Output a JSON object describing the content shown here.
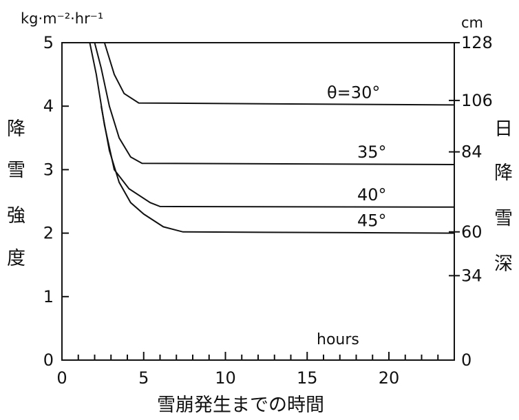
{
  "chart_data": {
    "type": "line",
    "xlabel": "雪崩発生までの時間",
    "ylabel_left": [
      "降",
      "雪",
      "強",
      "度"
    ],
    "ylabel_right": [
      "日",
      "降",
      "雪",
      "深"
    ],
    "left_unit": "kg·m⁻²·hr⁻¹",
    "right_unit": "cm",
    "hours_label": "hours",
    "xlim": [
      0,
      24
    ],
    "ylim": [
      0,
      5
    ],
    "x_ticks": [
      "0",
      "5",
      "10",
      "15",
      "20"
    ],
    "x_tick_values": [
      0,
      5,
      10,
      15,
      20
    ],
    "y_ticks": [
      "0",
      "1",
      "2",
      "3",
      "4",
      "5"
    ],
    "y_tick_values": [
      0,
      1,
      2,
      3,
      4,
      5
    ],
    "right_ticks": [
      "0",
      "34",
      "60",
      "84",
      "106",
      "128"
    ],
    "right_tick_values": [
      0,
      1.33,
      2.02,
      3.28,
      4.09,
      5
    ],
    "series": [
      {
        "name": "θ=30°",
        "points": [
          [
            2.2,
            5.0
          ],
          [
            2.6,
            5.0
          ],
          [
            3.2,
            4.5
          ],
          [
            3.8,
            4.2
          ],
          [
            4.7,
            4.05
          ],
          [
            24,
            4.02
          ]
        ]
      },
      {
        "name": "35°",
        "points": [
          [
            2.0,
            5.0
          ],
          [
            2.4,
            4.6
          ],
          [
            2.9,
            4.0
          ],
          [
            3.5,
            3.5
          ],
          [
            4.2,
            3.2
          ],
          [
            4.9,
            3.1
          ],
          [
            24,
            3.08
          ]
        ]
      },
      {
        "name": "40°",
        "points": [
          [
            1.7,
            5.0
          ],
          [
            2.1,
            4.5
          ],
          [
            2.6,
            3.7
          ],
          [
            3.2,
            3.0
          ],
          [
            4.1,
            2.7
          ],
          [
            5.4,
            2.48
          ],
          [
            6.0,
            2.42
          ],
          [
            24,
            2.41
          ]
        ]
      },
      {
        "name": "45°",
        "points": [
          [
            2.4,
            4.0
          ],
          [
            2.9,
            3.3
          ],
          [
            3.5,
            2.8
          ],
          [
            4.2,
            2.48
          ],
          [
            5.0,
            2.3
          ],
          [
            6.2,
            2.1
          ],
          [
            7.4,
            2.02
          ],
          [
            24,
            2.0
          ]
        ]
      }
    ]
  }
}
